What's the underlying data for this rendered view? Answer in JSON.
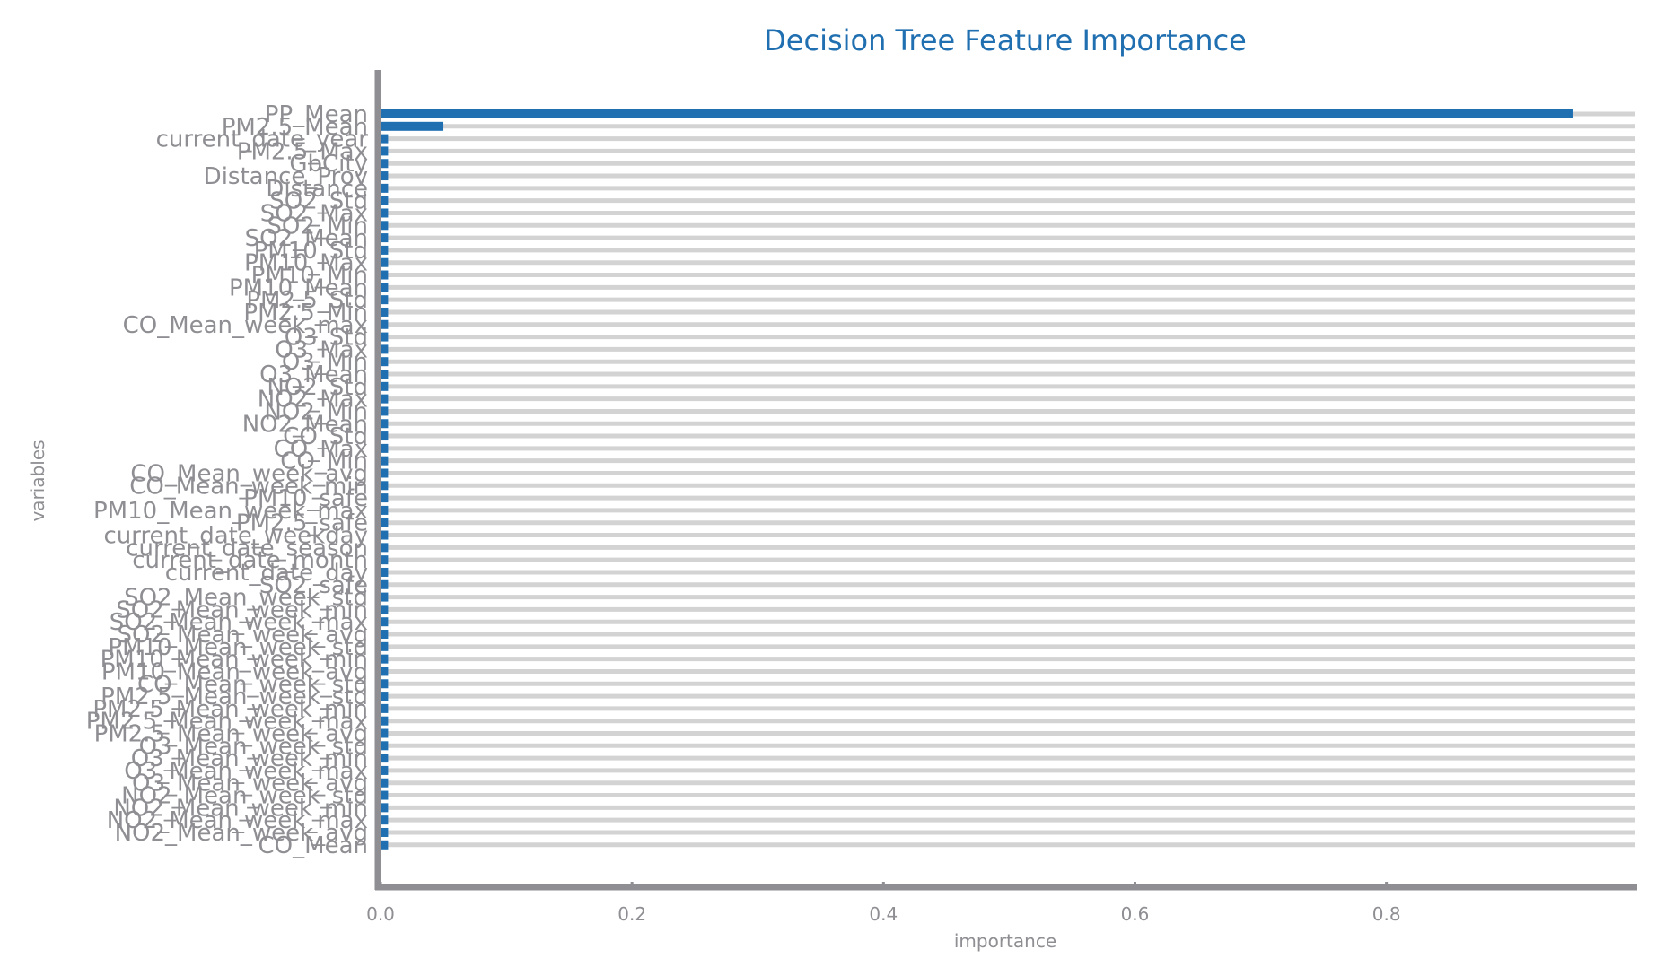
{
  "chart_data": {
    "type": "bar",
    "orientation": "horizontal",
    "title": "Decision Tree Feature Importance",
    "xlabel": "importance",
    "ylabel": "variables",
    "xlim": [
      0,
      0.998
    ],
    "xticks": [
      "0.0",
      "0.2",
      "0.4",
      "0.6",
      "0.8"
    ],
    "xtick_values": [
      0.0,
      0.2,
      0.4,
      0.6,
      0.8
    ],
    "categories": [
      "PP_Mean",
      "PM2.5_Mean",
      "current_date_year",
      "PM2.5_Max",
      "GbCity",
      "Distance_Prov",
      "Distance",
      "SO2_Std",
      "SO2_Max",
      "SO2_Min",
      "SO2_Mean",
      "PM10_Std",
      "PM10_Max",
      "PM10_Min",
      "PM10_Mean",
      "PM2.5_Std",
      "PM2.5_Min",
      "CO_Mean_week_max",
      "O3_Std",
      "O3_Max",
      "O3_Min",
      "O3_Mean",
      "NO2_Std",
      "NO2_Max",
      "NO2_Min",
      "NO2_Mean",
      "CO_Std",
      "CO_Max",
      "CO_Min",
      "CO_Mean_week_avg",
      "CO_Mean_week_min",
      "PM10_safe",
      "PM10_Mean_week_max",
      "PM2.5_safe",
      "current_date_weekday",
      "current_date_season",
      "current_date_month",
      "current_date_day",
      "SO2_safe",
      "SO2_Mean_week_std",
      "SO2_Mean_week_min",
      "SO2_Mean_week_max",
      "SO2_Mean_week_avg",
      "PM10_Mean_week_std",
      "PM10_Mean_week_min",
      "PM10_Mean_week_avg",
      "CO_Mean_week_std",
      "PM2.5_Mean_week_std",
      "PM2.5_Mean_week_min",
      "PM2.5_Mean_week_max",
      "PM2.5_Mean_week_avg",
      "O3_Mean_week_std",
      "O3_Mean_week_min",
      "O3_Mean_week_max",
      "O3_Mean_week_avg",
      "NO2_Mean_week_std",
      "NO2_Mean_week_min",
      "NO2_Mean_week_max",
      "NO2_Mean_week_avg",
      "CO_Mean"
    ],
    "values": [
      0.948,
      0.05,
      0.006,
      0.006,
      0.006,
      0.006,
      0.006,
      0.006,
      0.006,
      0.006,
      0.006,
      0.006,
      0.006,
      0.006,
      0.006,
      0.006,
      0.006,
      0.006,
      0.006,
      0.006,
      0.006,
      0.006,
      0.006,
      0.006,
      0.006,
      0.006,
      0.006,
      0.006,
      0.006,
      0.006,
      0.006,
      0.006,
      0.006,
      0.006,
      0.006,
      0.006,
      0.006,
      0.006,
      0.006,
      0.006,
      0.006,
      0.006,
      0.006,
      0.006,
      0.006,
      0.006,
      0.006,
      0.006,
      0.006,
      0.006,
      0.006,
      0.006,
      0.006,
      0.006,
      0.006,
      0.006,
      0.006,
      0.006,
      0.006,
      0.006
    ],
    "grid": true,
    "legend": "none",
    "colors": {
      "bar": "#1f6fb1",
      "grid": "#d3d3d3",
      "axis": "#8e8e93",
      "title": "#1f6fb1"
    }
  }
}
